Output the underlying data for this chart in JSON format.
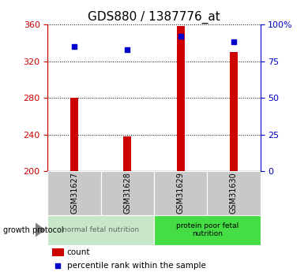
{
  "title": "GDS880 / 1387776_at",
  "categories": [
    "GSM31627",
    "GSM31628",
    "GSM31629",
    "GSM31630"
  ],
  "bar_values": [
    280,
    238,
    358,
    330
  ],
  "bar_bottom": 200,
  "percentile_values": [
    85,
    83,
    92,
    88
  ],
  "left_ylim": [
    200,
    360
  ],
  "left_yticks": [
    200,
    240,
    280,
    320,
    360
  ],
  "right_ylim": [
    0,
    100
  ],
  "right_yticks": [
    0,
    25,
    50,
    75,
    100
  ],
  "right_yticklabels": [
    "0",
    "25",
    "50",
    "75",
    "100%"
  ],
  "bar_color": "#cc0000",
  "point_color": "#0000cc",
  "group1_label": "normal fetal nutrition",
  "group2_label": "protein poor fetal\nnutrition",
  "group1_indices": [
    0,
    1
  ],
  "group2_indices": [
    2,
    3
  ],
  "group1_bg": "#c8e6c8",
  "group2_bg": "#44dd44",
  "sample_bg": "#c8c8c8",
  "protocol_label": "growth protocol",
  "legend_count_label": "count",
  "legend_pct_label": "percentile rank within the sample",
  "title_fontsize": 11,
  "axis_label_color_left": "#cc0000",
  "axis_label_color_right": "#0000cc",
  "bar_width": 0.15
}
